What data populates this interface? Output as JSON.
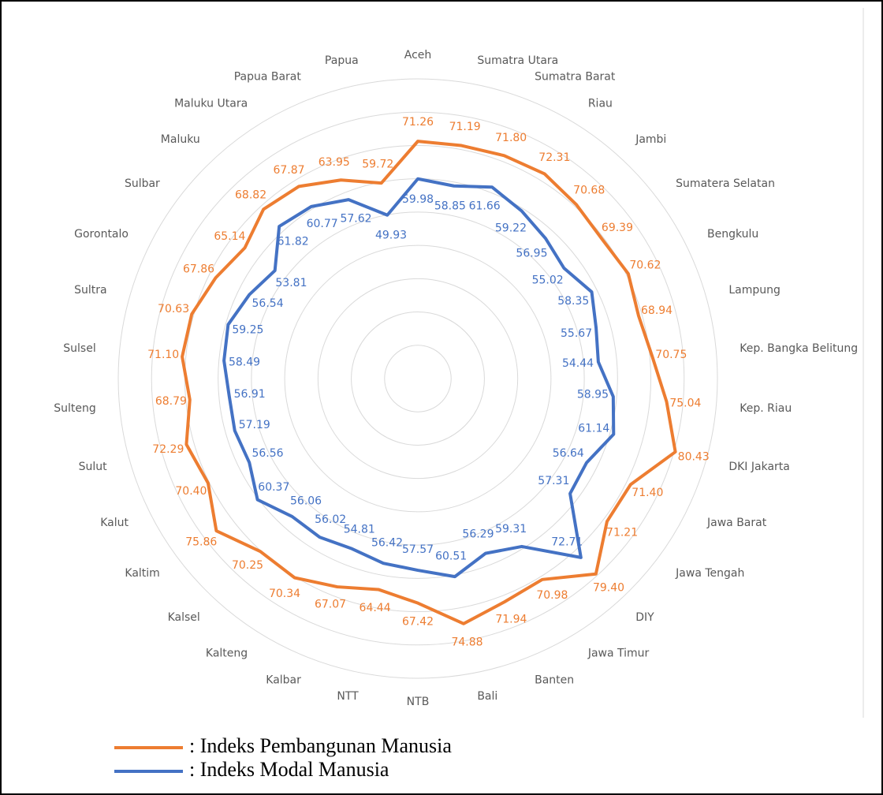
{
  "chart_data": {
    "type": "radar",
    "categories": [
      "Aceh",
      "Sumatra Utara",
      "Sumatra Barat",
      "Riau",
      "Jambi",
      "Sumatera Selatan",
      "Bengkulu",
      "Lampung",
      "Kep. Bangka Belitung",
      "Kep. Riau",
      "DKI Jakarta",
      "Jawa Barat",
      "Jawa Tengah",
      "DIY",
      "Jawa Timur",
      "Banten",
      "Bali",
      "NTB",
      "NTT",
      "Kalbar",
      "Kalteng",
      "Kalsel",
      "Kaltim",
      "Kalut",
      "Sulut",
      "Sulteng",
      "Sulsel",
      "Sultra",
      "Gorontalo",
      "Sulbar",
      "Maluku",
      "Maluku Utara",
      "Papua Barat",
      "Papua"
    ],
    "series": [
      {
        "name": ": Indeks Pembangunan Manusia",
        "color": "#ed7d31",
        "values": [
          71.26,
          71.19,
          71.8,
          72.31,
          70.68,
          69.39,
          70.62,
          68.94,
          70.75,
          75.04,
          80.43,
          71.4,
          71.21,
          79.4,
          70.98,
          71.94,
          74.88,
          67.42,
          64.44,
          67.07,
          70.34,
          70.25,
          75.86,
          70.4,
          72.29,
          68.79,
          71.1,
          70.63,
          67.86,
          65.14,
          68.82,
          67.87,
          63.95,
          59.72
        ],
        "value_labels": [
          "71.26",
          "71.19",
          "71.80",
          "72.31",
          "70.68",
          "69.39",
          "70.62",
          "68.94",
          "70.75",
          "75.04",
          "80.43",
          "71.40",
          "71.21",
          "79.40",
          "70.98",
          "71.94",
          "74.88",
          "67.42",
          "64.44",
          "67.07",
          "70.34",
          "70.25",
          "75.86",
          "70.40",
          "72.29",
          "68.79",
          "71.10",
          "70.63",
          "67.86",
          "65.14",
          "68.82",
          "67.87",
          "63.95",
          "59.72"
        ]
      },
      {
        "name": ": Indeks Modal Manusia",
        "color": "#4472c4",
        "values": [
          59.98,
          58.85,
          61.66,
          59.22,
          56.95,
          55.02,
          58.35,
          55.67,
          54.44,
          58.95,
          61.14,
          56.64,
          57.31,
          72.71,
          59.31,
          56.29,
          60.51,
          57.57,
          56.42,
          54.81,
          56.02,
          56.06,
          60.37,
          56.56,
          57.19,
          56.91,
          58.49,
          59.25,
          56.54,
          53.81,
          61.82,
          60.77,
          57.62,
          49.93
        ]
      }
    ],
    "ylim": [
      0,
      90
    ],
    "yticks": [
      10,
      20,
      30,
      40,
      50,
      60,
      70,
      80,
      90
    ],
    "grid": true
  }
}
